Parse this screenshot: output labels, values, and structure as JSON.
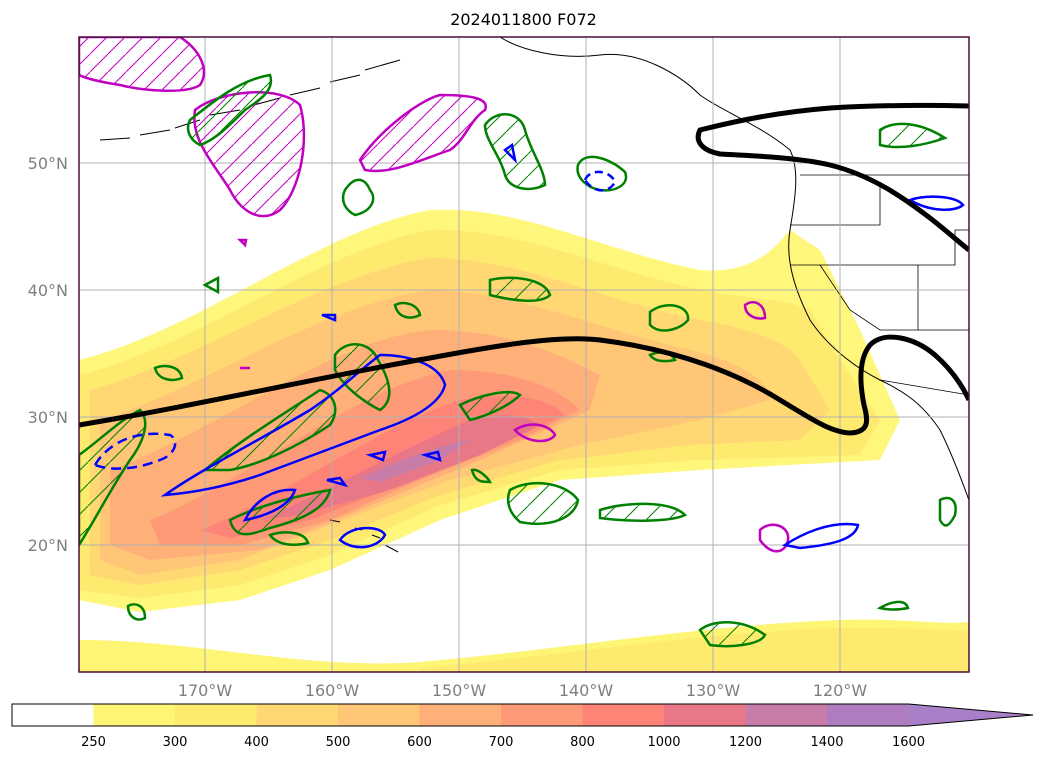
{
  "title": "2024011800 F072",
  "map": {
    "lat_labels": [
      "50°N",
      "40°N",
      "30°N",
      "20°N"
    ],
    "lon_labels": [
      "170°W",
      "160°W",
      "150°W",
      "140°W",
      "130°W",
      "120°W"
    ],
    "colors": {
      "grid": "#b0b0b0",
      "frame": "#4b0d3a",
      "jet_line": "#000000",
      "green_contour": "#008000",
      "blue_contour": "#0000ff",
      "magenta_contour": "#c000c0"
    }
  },
  "colorbar": {
    "labels": [
      "250",
      "300",
      "400",
      "500",
      "600",
      "700",
      "800",
      "1000",
      "1200",
      "1400",
      "1600"
    ],
    "colors": [
      "#ffffff",
      "#fff575",
      "#ffea70",
      "#ffd873",
      "#ffc677",
      "#ffb078",
      "#ff9a78",
      "#ff8478",
      "#e87888",
      "#c87ca8",
      "#b07cc0",
      "#a880c8"
    ],
    "extend": "max"
  }
}
